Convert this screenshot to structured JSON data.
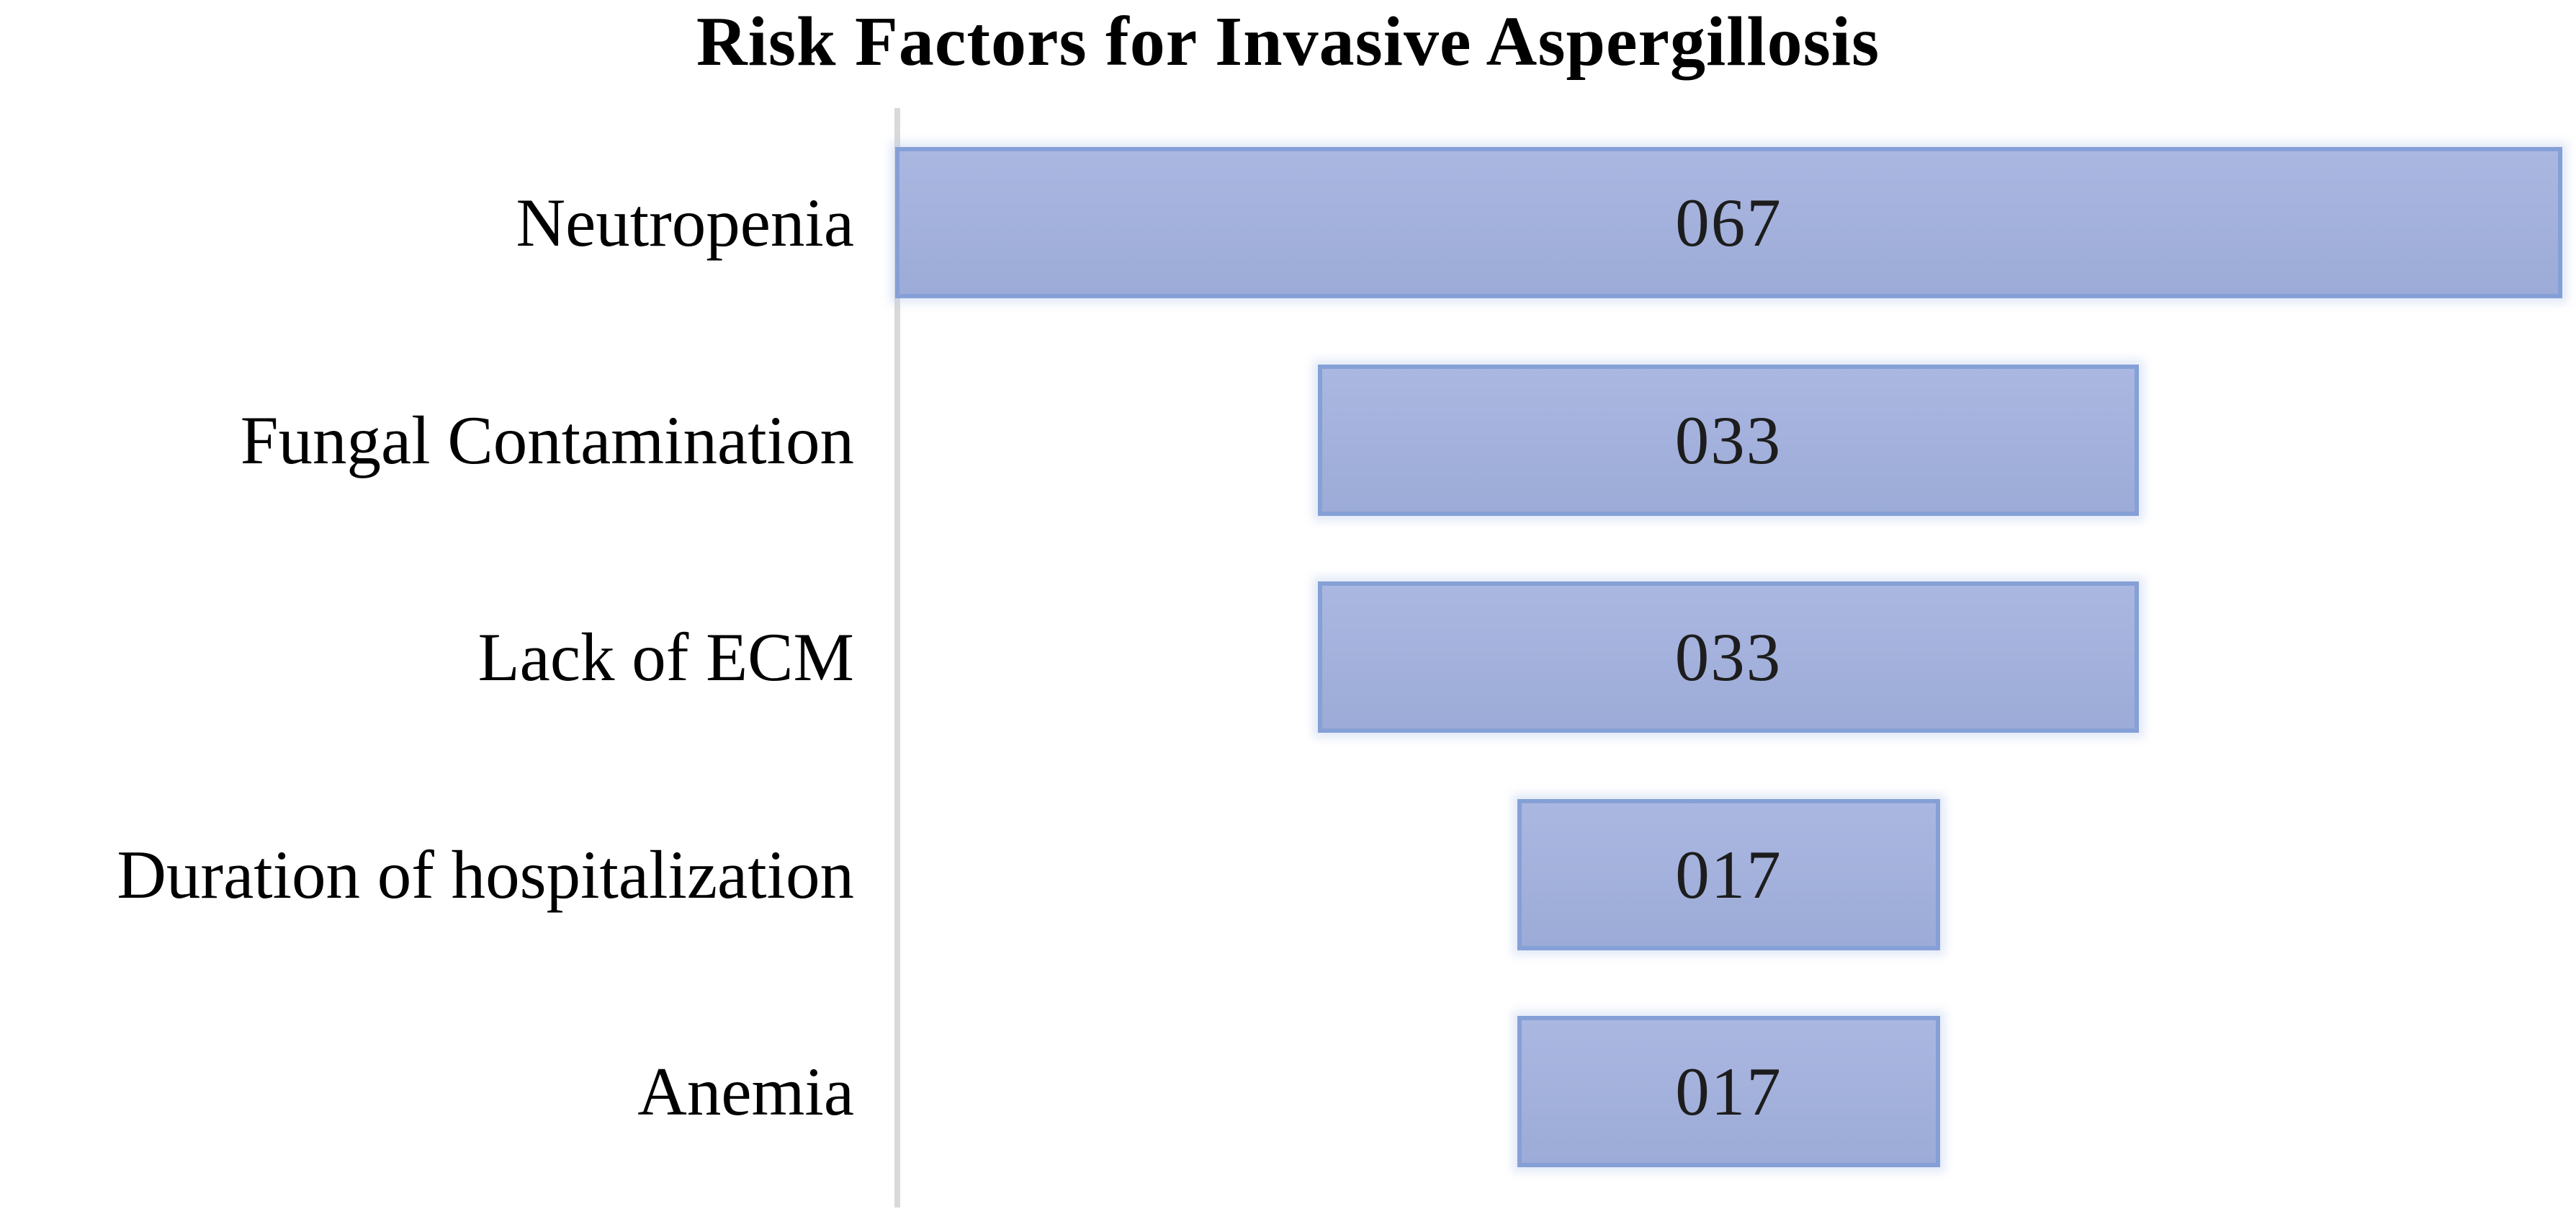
{
  "figure": {
    "background": "#ffffff"
  },
  "chart_data": {
    "type": "funnel",
    "title": "Risk Factors for Invasive Aspergillosis",
    "orientation": "horizontal-centered-bars",
    "categories": [
      "Neutropenia",
      "Fungal Contamination",
      "Lack of ECM",
      "Duration of hospitalization",
      "Anemia"
    ],
    "values": [
      67,
      33,
      33,
      17,
      17
    ],
    "data_labels": [
      "067",
      "033",
      "033",
      "017",
      "017"
    ],
    "value_axis_max": 67,
    "gridlines": "off",
    "legend": "none",
    "category_axis_line": true,
    "colors": {
      "bar_fill": "#a3b1dc",
      "bar_fill_light": "#aab7e1",
      "bar_fill_dark": "#9cabd7",
      "bar_border": "#85a0d6",
      "axis_line": "#d9d9d9",
      "title_text": "#000000",
      "category_text": "#000000",
      "value_text": "#1d1d1d"
    }
  }
}
